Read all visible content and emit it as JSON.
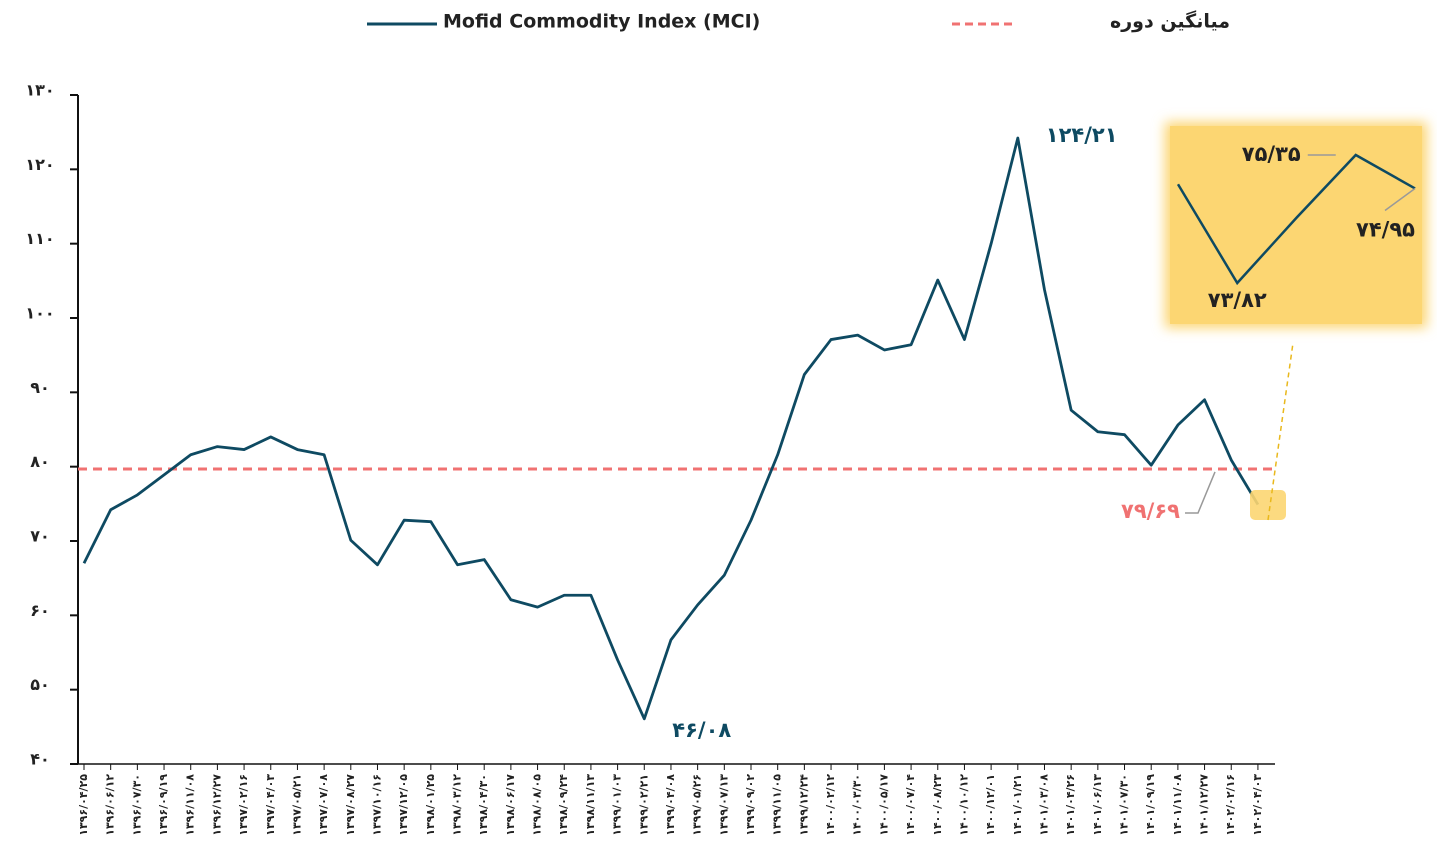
{
  "chart_data": {
    "type": "line",
    "categories": [
      "۱۳۹۶/۰۴/۲۵",
      "۱۳۹۶/۰۶/۱۲",
      "۱۳۹۶/۰۷/۳۰",
      "۱۳۹۶/۰۹/۱۹",
      "۱۳۹۶/۱۱/۰۸",
      "۱۳۹۶/۱۲/۲۷",
      "۱۳۹۷/۰۲/۱۶",
      "۱۳۹۷/۰۴/۰۳",
      "۱۳۹۷/۰۵/۲۱",
      "۱۳۹۷/۰۷/۰۸",
      "۱۳۹۷/۰۸/۲۷",
      "۱۳۹۷/۱۰/۱۶",
      "۱۳۹۷/۱۲/۰۵",
      "۱۳۹۸/۰۱/۲۵",
      "۱۳۹۸/۰۳/۱۲",
      "۱۳۹۸/۰۴/۳۰",
      "۱۳۹۸/۰۶/۱۷",
      "۱۳۹۸/۰۸/۰۵",
      "۱۳۹۸/۰۹/۲۴",
      "۱۳۹۸/۱۱/۱۳",
      "۱۳۹۹/۰۱/۰۳",
      "۱۳۹۹/۰۲/۲۱",
      "۱۳۹۹/۰۴/۰۸",
      "۱۳۹۹/۰۵/۲۶",
      "۱۳۹۹/۰۷/۱۳",
      "۱۳۹۹/۰۹/۰۲",
      "۱۳۹۹/۱۱/۰۵",
      "۱۳۹۹/۱۲/۲۴",
      "۱۴۰۰/۰۲/۱۲",
      "۱۴۰۰/۰۳/۳۰",
      "۱۴۰۰/۰۵/۱۷",
      "۱۴۰۰/۰۷/۰۴",
      "۱۴۰۰/۰۸/۲۳",
      "۱۴۰۰/۱۰/۱۲",
      "۱۴۰۰/۱۲/۰۱",
      "۱۴۰۱/۰۱/۲۱",
      "۱۴۰۱/۰۳/۰۸",
      "۱۴۰۱/۰۴/۲۶",
      "۱۴۰۱/۰۶/۱۳",
      "۱۴۰۱/۰۷/۳۰",
      "۱۴۰۱/۰۹/۱۹",
      "۱۴۰۱/۱۱/۰۸",
      "۱۴۰۱/۱۲/۲۷",
      "۱۴۰۲/۰۲/۱۶",
      "۱۴۰۲/۰۴/۰۳"
    ],
    "series": [
      {
        "name": "Mofid Commodity Index (MCI)",
        "color": "#0e4a62",
        "values": [
          67,
          74.2,
          76.2,
          78.9,
          81.6,
          82.7,
          82.3,
          84,
          82.3,
          81.6,
          70.1,
          66.8,
          72.8,
          72.6,
          66.8,
          67.5,
          62.1,
          61.1,
          62.7,
          62.7,
          54,
          46.08,
          56.7,
          61.4,
          65.4,
          72.8,
          81.6,
          92.4,
          97.1,
          97.7,
          95.7,
          96.4,
          105.1,
          97.1,
          110,
          124.21,
          103.8,
          87.6,
          84.7,
          84.3,
          80.2,
          85.6,
          89,
          80.9,
          74.9
        ],
        "value_labels": [
          null,
          null,
          null,
          null,
          null,
          null,
          null,
          null,
          null,
          null,
          null,
          null,
          null,
          null,
          null,
          null,
          null,
          null,
          null,
          null,
          null,
          "۴۶/۰۸",
          null,
          null,
          null,
          null,
          null,
          null,
          null,
          null,
          null,
          null,
          null,
          null,
          null,
          "۱۲۴/۲۱",
          null,
          null,
          null,
          null,
          null,
          null,
          null,
          null,
          null
        ]
      }
    ],
    "reference_line": {
      "name": "میانگین دوره",
      "value": 79.69,
      "label": "۷۹/۶۹",
      "color": "#f07272",
      "dashed": true
    },
    "inset": {
      "values": [
        75.0,
        73.82,
        74.6,
        75.35,
        74.95
      ],
      "value_labels": [
        null,
        "۷۳/۸۲",
        null,
        "۷۵/۳۵",
        "۷۴/۹۵"
      ],
      "background": "#fcd672"
    },
    "ylim": [
      40,
      130
    ],
    "yticks": [
      {
        "value": 40,
        "label": "۴۰"
      },
      {
        "value": 50,
        "label": "۵۰"
      },
      {
        "value": 60,
        "label": "۶۰"
      },
      {
        "value": 70,
        "label": "۷۰"
      },
      {
        "value": 80,
        "label": "۸۰"
      },
      {
        "value": 90,
        "label": "۹۰"
      },
      {
        "value": 100,
        "label": "۱۰۰"
      },
      {
        "value": 110,
        "label": "۱۱۰"
      },
      {
        "value": 120,
        "label": "۱۲۰"
      },
      {
        "value": 130,
        "label": "۱۳۰"
      }
    ],
    "grid": false
  }
}
